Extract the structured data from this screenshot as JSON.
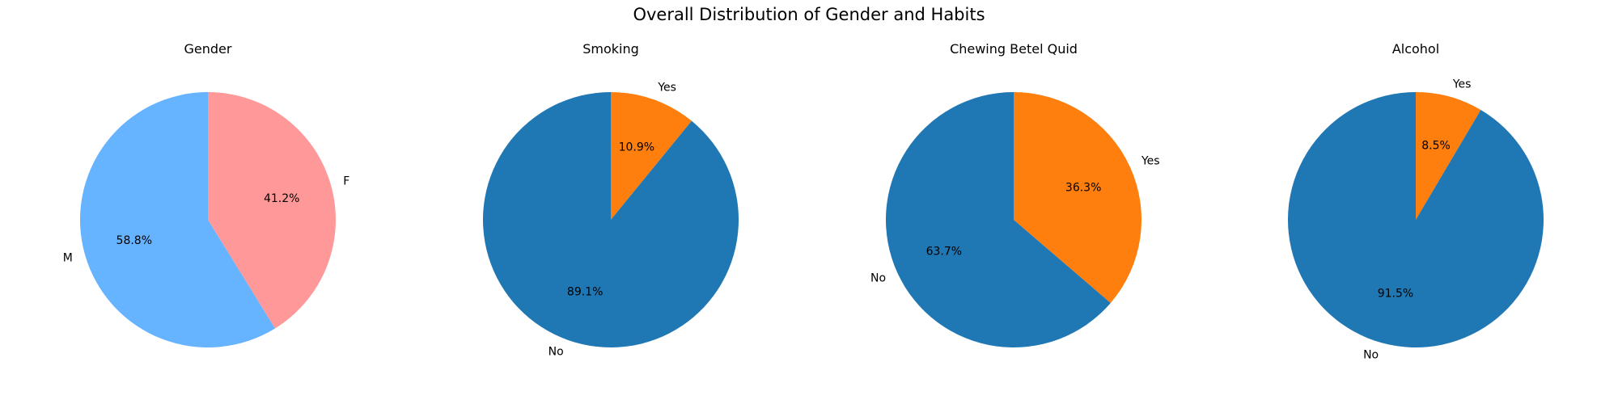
{
  "figure": {
    "suptitle": "Overall Distribution of Gender and Habits"
  },
  "chart_data": [
    {
      "type": "pie",
      "title": "Gender",
      "labels": [
        "F",
        "M"
      ],
      "values": [
        41.2,
        58.8
      ],
      "pct_labels": [
        "41.2%",
        "58.8%"
      ],
      "colors": [
        "#ff9999",
        "#66b3ff"
      ]
    },
    {
      "type": "pie",
      "title": "Smoking",
      "labels": [
        "Yes",
        "No"
      ],
      "values": [
        10.9,
        89.1
      ],
      "pct_labels": [
        "10.9%",
        "89.1%"
      ],
      "colors": [
        "#ff7f0e",
        "#1f77b4"
      ]
    },
    {
      "type": "pie",
      "title": "Chewing Betel Quid",
      "labels": [
        "Yes",
        "No"
      ],
      "values": [
        36.3,
        63.7
      ],
      "pct_labels": [
        "36.3%",
        "63.7%"
      ],
      "colors": [
        "#ff7f0e",
        "#1f77b4"
      ]
    },
    {
      "type": "pie",
      "title": "Alcohol",
      "labels": [
        "Yes",
        "No"
      ],
      "values": [
        8.5,
        91.5
      ],
      "pct_labels": [
        "8.5%",
        "91.5%"
      ],
      "colors": [
        "#ff7f0e",
        "#1f77b4"
      ]
    }
  ]
}
